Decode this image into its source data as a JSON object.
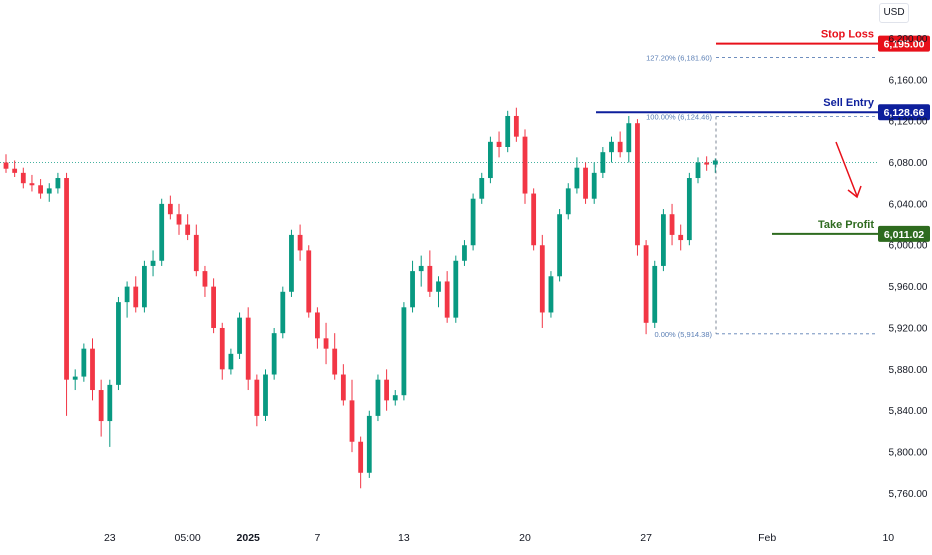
{
  "currency": "USD",
  "chart_data": {
    "type": "candlestick",
    "y_axis_ticks": [
      "6,200.00",
      "6,160.00",
      "6,120.00",
      "6,080.00",
      "6,040.00",
      "6,000.00",
      "5,960.00",
      "5,920.00",
      "5,880.00",
      "5,840.00",
      "5,800.00",
      "5,760.00"
    ],
    "y_tick_values": [
      6200,
      6160,
      6120,
      6080,
      6040,
      6000,
      5960,
      5920,
      5880,
      5840,
      5800,
      5760
    ],
    "x_axis_ticks": [
      {
        "label": "23",
        "bold": false,
        "index": 12
      },
      {
        "label": "05:00",
        "bold": false,
        "index": 21
      },
      {
        "label": "2025",
        "bold": true,
        "index": 28
      },
      {
        "label": "7",
        "bold": false,
        "index": 36
      },
      {
        "label": "13",
        "bold": false,
        "index": 46
      },
      {
        "label": "20",
        "bold": false,
        "index": 60
      },
      {
        "label": "27",
        "bold": false,
        "index": 74
      },
      {
        "label": "Feb",
        "bold": false,
        "index": 88
      },
      {
        "label": "10",
        "bold": false,
        "index": 102
      }
    ],
    "ylim": [
      5744,
      6212
    ],
    "candles": [
      [
        6080,
        6088,
        6070,
        6074
      ],
      [
        6074,
        6082,
        6066,
        6070
      ],
      [
        6070,
        6075,
        6055,
        6060
      ],
      [
        6060,
        6068,
        6052,
        6058
      ],
      [
        6058,
        6064,
        6045,
        6050
      ],
      [
        6050,
        6060,
        6042,
        6055
      ],
      [
        6055,
        6070,
        6050,
        6065
      ],
      [
        6065,
        6070,
        5835,
        5870
      ],
      [
        5870,
        5880,
        5860,
        5873
      ],
      [
        5873,
        5905,
        5868,
        5900
      ],
      [
        5900,
        5910,
        5850,
        5860
      ],
      [
        5860,
        5870,
        5815,
        5830
      ],
      [
        5830,
        5870,
        5805,
        5865
      ],
      [
        5865,
        5950,
        5860,
        5945
      ],
      [
        5945,
        5965,
        5930,
        5960
      ],
      [
        5960,
        5970,
        5935,
        5940
      ],
      [
        5940,
        5985,
        5935,
        5980
      ],
      [
        5980,
        5995,
        5970,
        5985
      ],
      [
        5985,
        6045,
        5980,
        6040
      ],
      [
        6040,
        6048,
        6025,
        6030
      ],
      [
        6030,
        6040,
        6010,
        6020
      ],
      [
        6020,
        6030,
        6005,
        6010
      ],
      [
        6010,
        6020,
        5970,
        5975
      ],
      [
        5975,
        5980,
        5950,
        5960
      ],
      [
        5960,
        5968,
        5915,
        5920
      ],
      [
        5920,
        5925,
        5870,
        5880
      ],
      [
        5880,
        5900,
        5875,
        5895
      ],
      [
        5895,
        5935,
        5890,
        5930
      ],
      [
        5930,
        5940,
        5860,
        5870
      ],
      [
        5870,
        5875,
        5825,
        5835
      ],
      [
        5835,
        5880,
        5830,
        5875
      ],
      [
        5875,
        5920,
        5870,
        5915
      ],
      [
        5915,
        5960,
        5910,
        5955
      ],
      [
        5955,
        6015,
        5950,
        6010
      ],
      [
        6010,
        6020,
        5985,
        5995
      ],
      [
        5995,
        6000,
        5930,
        5935
      ],
      [
        5935,
        5940,
        5900,
        5910
      ],
      [
        5910,
        5925,
        5885,
        5900
      ],
      [
        5900,
        5915,
        5870,
        5875
      ],
      [
        5875,
        5885,
        5845,
        5850
      ],
      [
        5850,
        5870,
        5800,
        5810
      ],
      [
        5810,
        5815,
        5765,
        5780
      ],
      [
        5780,
        5840,
        5775,
        5835
      ],
      [
        5835,
        5875,
        5830,
        5870
      ],
      [
        5870,
        5880,
        5840,
        5850
      ],
      [
        5850,
        5860,
        5845,
        5855
      ],
      [
        5855,
        5945,
        5850,
        5940
      ],
      [
        5940,
        5985,
        5935,
        5975
      ],
      [
        5975,
        5990,
        5960,
        5980
      ],
      [
        5980,
        5995,
        5950,
        5955
      ],
      [
        5955,
        5970,
        5940,
        5965
      ],
      [
        5965,
        5975,
        5925,
        5930
      ],
      [
        5930,
        5990,
        5925,
        5985
      ],
      [
        5985,
        6005,
        5980,
        6000
      ],
      [
        6000,
        6050,
        5995,
        6045
      ],
      [
        6045,
        6070,
        6040,
        6065
      ],
      [
        6065,
        6105,
        6060,
        6100
      ],
      [
        6100,
        6110,
        6085,
        6095
      ],
      [
        6095,
        6130,
        6090,
        6125
      ],
      [
        6125,
        6133,
        6100,
        6105
      ],
      [
        6105,
        6112,
        6040,
        6050
      ],
      [
        6050,
        6055,
        5995,
        6000
      ],
      [
        6000,
        6010,
        5920,
        5935
      ],
      [
        5935,
        5975,
        5930,
        5970
      ],
      [
        5970,
        6035,
        5965,
        6030
      ],
      [
        6030,
        6060,
        6025,
        6055
      ],
      [
        6055,
        6085,
        6050,
        6075
      ],
      [
        6075,
        6080,
        6040,
        6045
      ],
      [
        6045,
        6080,
        6040,
        6070
      ],
      [
        6070,
        6095,
        6065,
        6090
      ],
      [
        6090,
        6105,
        6080,
        6100
      ],
      [
        6100,
        6110,
        6085,
        6090
      ],
      [
        6090,
        6125,
        6080,
        6118
      ],
      [
        6118,
        6122,
        5990,
        6000
      ],
      [
        6000,
        6005,
        5914,
        5925
      ],
      [
        5925,
        5985,
        5920,
        5980
      ],
      [
        5980,
        6035,
        5975,
        6030
      ],
      [
        6030,
        6040,
        6000,
        6010
      ],
      [
        6010,
        6020,
        5995,
        6005
      ],
      [
        6005,
        6070,
        6000,
        6065
      ],
      [
        6065,
        6085,
        6060,
        6080
      ],
      [
        6080,
        6086,
        6072,
        6078
      ],
      [
        6078,
        6084,
        6070,
        6082
      ]
    ],
    "annotations": {
      "stop_loss": {
        "label": "Stop Loss",
        "price_label": "6,195.00",
        "value": 6195.0,
        "color": "#e8101a"
      },
      "sell_entry": {
        "label": "Sell Entry",
        "price_label": "6,128.66",
        "value": 6128.66,
        "color": "#0d1f9c"
      },
      "take_profit": {
        "label": "Take Profit",
        "price_label": "6,011.02",
        "value": 6011.02,
        "color": "#2e6b1f"
      },
      "fib_127": {
        "label": "127.20% (6,181.60)",
        "value": 6181.6
      },
      "fib_100": {
        "label": "100.00% (6,124.46)",
        "value": 6124.46
      },
      "fib_0": {
        "label": "0.00% (5,914.38)",
        "value": 5914.38
      },
      "current_price_line": 6080
    },
    "colors": {
      "up": "#089981",
      "down": "#f23645",
      "axis_text": "#131722",
      "fib": "#5b7fb5",
      "arrow": "#e8101a",
      "current_line": "#089981"
    },
    "grid": false
  }
}
